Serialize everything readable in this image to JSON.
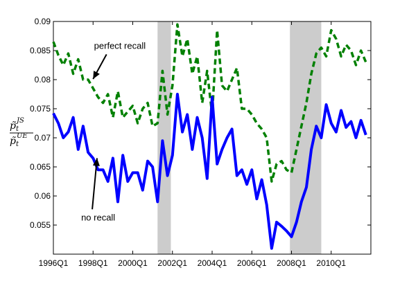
{
  "chart_data": {
    "type": "line",
    "title": "",
    "xlabel": "",
    "ylabel": {
      "numerator": "p̃",
      "numerator_sub": "t",
      "numerator_sup": "JS",
      "denominator": "p̃",
      "denominator_sub": "t",
      "denominator_sup": "UE"
    },
    "x_range": [
      1996.0,
      2012.0
    ],
    "ylim": [
      0.05,
      0.09
    ],
    "x_ticks": [
      {
        "label": "1996Q1",
        "x": 1996.0
      },
      {
        "label": "1998Q1",
        "x": 1998.0
      },
      {
        "label": "2000Q1",
        "x": 2000.0
      },
      {
        "label": "2002Q1",
        "x": 2002.0
      },
      {
        "label": "2004Q1",
        "x": 2004.0
      },
      {
        "label": "2006Q1",
        "x": 2006.0
      },
      {
        "label": "2008Q1",
        "x": 2008.0
      },
      {
        "label": "2010Q1",
        "x": 2010.0
      }
    ],
    "y_ticks": [
      {
        "label": "0.055",
        "y": 0.055
      },
      {
        "label": "0.06",
        "y": 0.06
      },
      {
        "label": "0.065",
        "y": 0.065
      },
      {
        "label": "0.07",
        "y": 0.07
      },
      {
        "label": "0.075",
        "y": 0.075
      },
      {
        "label": "0.08",
        "y": 0.08
      },
      {
        "label": "0.085",
        "y": 0.085
      },
      {
        "label": "0.09",
        "y": 0.09
      }
    ],
    "grid": false,
    "legend": "none",
    "shaded_periods": [
      {
        "start": 2001.25,
        "end": 2001.92
      },
      {
        "start": 2007.92,
        "end": 2009.5
      }
    ],
    "annotations": [
      {
        "text": "perfect recall",
        "series": 0,
        "arrow_to": [
          1998.0,
          0.0801
        ],
        "text_at": [
          1998.05,
          0.0853
        ]
      },
      {
        "text": "no recall",
        "series": 1,
        "arrow_to": [
          1998.2,
          0.0665
        ],
        "text_at": [
          1997.4,
          0.0558
        ]
      }
    ],
    "series": [
      {
        "name": "",
        "color": "#008000",
        "style": "dashed",
        "x": [
          1996.0,
          1996.25,
          1996.5,
          1996.75,
          1997.0,
          1997.25,
          1997.5,
          1997.75,
          1998.0,
          1998.25,
          1998.5,
          1998.75,
          1999.0,
          1999.25,
          1999.5,
          1999.75,
          2000.0,
          2000.25,
          2000.5,
          2000.75,
          2001.0,
          2001.25,
          2001.5,
          2001.75,
          2002.0,
          2002.25,
          2002.5,
          2002.75,
          2003.0,
          2003.25,
          2003.5,
          2003.75,
          2004.0,
          2004.25,
          2004.5,
          2004.75,
          2005.0,
          2005.25,
          2005.5,
          2005.75,
          2006.0,
          2006.25,
          2006.5,
          2006.75,
          2007.0,
          2007.25,
          2007.5,
          2007.75,
          2008.0,
          2008.25,
          2008.5,
          2008.75,
          2009.0,
          2009.25,
          2009.5,
          2009.75,
          2010.0,
          2010.25,
          2010.5,
          2010.75,
          2011.0,
          2011.25,
          2011.5,
          2011.75
        ],
        "values": [
          0.0865,
          0.0842,
          0.0825,
          0.0845,
          0.081,
          0.0835,
          0.08,
          0.08,
          0.0785,
          0.077,
          0.076,
          0.0775,
          0.0735,
          0.078,
          0.0735,
          0.0745,
          0.0755,
          0.0725,
          0.075,
          0.076,
          0.072,
          0.0725,
          0.0815,
          0.074,
          0.079,
          0.0895,
          0.084,
          0.087,
          0.081,
          0.084,
          0.076,
          0.0815,
          0.074,
          0.0885,
          0.079,
          0.078,
          0.08,
          0.082,
          0.075,
          0.075,
          0.074,
          0.0725,
          0.0715,
          0.07,
          0.0625,
          0.0655,
          0.066,
          0.0645,
          0.064,
          0.068,
          0.072,
          0.076,
          0.081,
          0.0845,
          0.0855,
          0.084,
          0.0885,
          0.087,
          0.084,
          0.086,
          0.085,
          0.0825,
          0.085,
          0.083
        ]
      },
      {
        "name": "",
        "color": "#0000ff",
        "style": "solid",
        "x": [
          1996.0,
          1996.25,
          1996.5,
          1996.75,
          1997.0,
          1997.25,
          1997.5,
          1997.75,
          1998.0,
          1998.25,
          1998.5,
          1998.75,
          1999.0,
          1999.25,
          1999.5,
          1999.75,
          2000.0,
          2000.25,
          2000.5,
          2000.75,
          2001.0,
          2001.25,
          2001.5,
          2001.75,
          2002.0,
          2002.25,
          2002.5,
          2002.75,
          2003.0,
          2003.25,
          2003.5,
          2003.75,
          2004.0,
          2004.25,
          2004.5,
          2004.75,
          2005.0,
          2005.25,
          2005.5,
          2005.75,
          2006.0,
          2006.25,
          2006.5,
          2006.75,
          2007.0,
          2007.25,
          2007.5,
          2007.75,
          2008.0,
          2008.25,
          2008.5,
          2008.75,
          2009.0,
          2009.25,
          2009.5,
          2009.75,
          2010.0,
          2010.25,
          2010.5,
          2010.75,
          2011.0,
          2011.25,
          2011.5,
          2011.75
        ],
        "values": [
          0.0742,
          0.0725,
          0.07,
          0.071,
          0.0735,
          0.068,
          0.072,
          0.0675,
          0.0665,
          0.0645,
          0.0645,
          0.0625,
          0.0665,
          0.059,
          0.067,
          0.0625,
          0.064,
          0.064,
          0.061,
          0.066,
          0.065,
          0.059,
          0.0695,
          0.0635,
          0.067,
          0.0775,
          0.071,
          0.074,
          0.068,
          0.0735,
          0.07,
          0.063,
          0.077,
          0.0655,
          0.068,
          0.07,
          0.0715,
          0.0635,
          0.0645,
          0.062,
          0.0645,
          0.0595,
          0.0628,
          0.0585,
          0.051,
          0.0555,
          0.0548,
          0.054,
          0.053,
          0.0555,
          0.059,
          0.0615,
          0.068,
          0.072,
          0.07,
          0.0757,
          0.0725,
          0.071,
          0.0747,
          0.0718,
          0.0728,
          0.07,
          0.073,
          0.0705
        ]
      }
    ]
  }
}
